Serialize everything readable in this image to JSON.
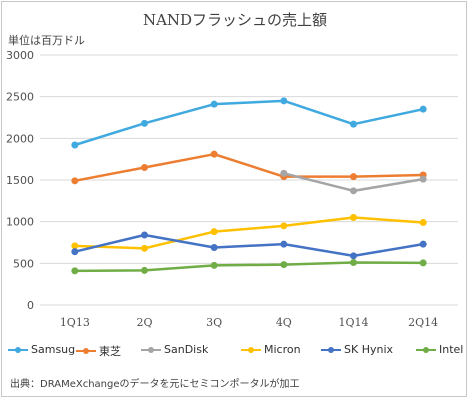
{
  "chart_data": {
    "type": "line",
    "title": "NANDフラッシュの売上額",
    "ylabel": "単位は百万ドル",
    "xlabel": "",
    "categories": [
      "1Q13",
      "2Q",
      "3Q",
      "4Q",
      "1Q14",
      "2Q14"
    ],
    "ylim": [
      0,
      3000
    ],
    "yticks": [
      0,
      500,
      1000,
      1500,
      2000,
      2500,
      3000
    ],
    "grid": true,
    "legend_position": "bottom",
    "series": [
      {
        "name": "Samsug",
        "color": "#3fa9e0",
        "values": [
          1920,
          2180,
          2410,
          2450,
          2170,
          2350
        ]
      },
      {
        "name": "東芝",
        "color": "#ed7d31",
        "values": [
          1490,
          1650,
          1810,
          1540,
          1540,
          1560
        ]
      },
      {
        "name": "SanDisk",
        "color": "#a5a5a5",
        "values": [
          null,
          null,
          null,
          1580,
          1370,
          1510
        ]
      },
      {
        "name": "Micron",
        "color": "#ffc000",
        "values": [
          710,
          680,
          880,
          950,
          1050,
          990
        ]
      },
      {
        "name": "SK Hynix",
        "color": "#4472c4",
        "values": [
          640,
          840,
          690,
          730,
          590,
          730
        ]
      },
      {
        "name": "Intel",
        "color": "#70ad47",
        "values": [
          410,
          415,
          475,
          485,
          510,
          505
        ]
      }
    ],
    "source": "出典：DRAMeXchangeのデータを元にセミコンポータルが加工"
  }
}
